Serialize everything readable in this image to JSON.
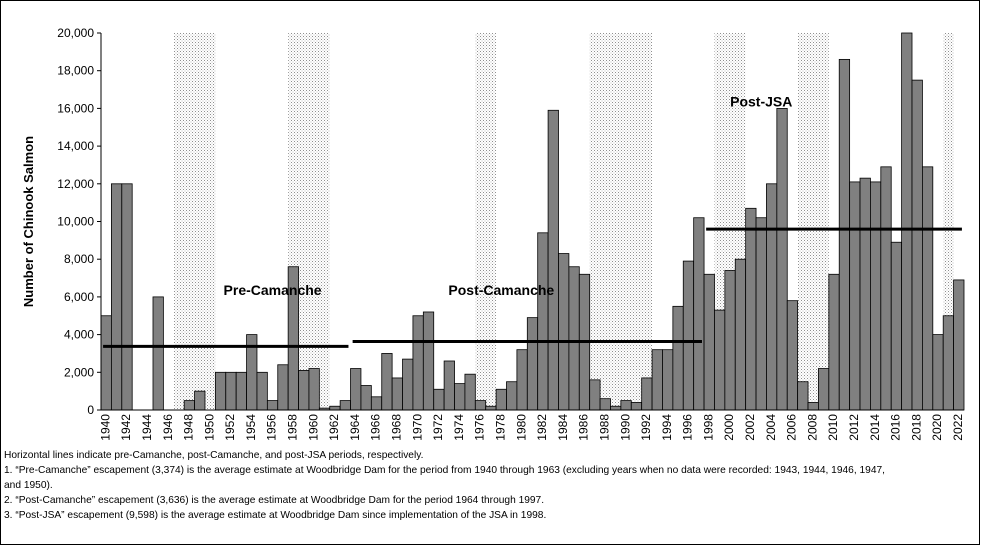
{
  "chart_data": {
    "type": "bar",
    "title": "",
    "xlabel": "",
    "ylabel": "Number of Chinook Salmon",
    "ylim": [
      0,
      20000
    ],
    "yticks": [
      "0",
      "2,000",
      "4,000",
      "6,000",
      "8,000",
      "10,000",
      "12,000",
      "14,000",
      "16,000",
      "18,000",
      "20,000"
    ],
    "ytick_values": [
      0,
      2000,
      4000,
      6000,
      8000,
      10000,
      12000,
      14000,
      16000,
      18000,
      20000
    ],
    "x": [
      1940,
      1941,
      1942,
      1943,
      1944,
      1945,
      1946,
      1947,
      1948,
      1949,
      1950,
      1951,
      1952,
      1953,
      1954,
      1955,
      1956,
      1957,
      1958,
      1959,
      1960,
      1961,
      1962,
      1963,
      1964,
      1965,
      1966,
      1967,
      1968,
      1969,
      1970,
      1971,
      1972,
      1973,
      1974,
      1975,
      1976,
      1977,
      1978,
      1979,
      1980,
      1981,
      1982,
      1983,
      1984,
      1985,
      1986,
      1987,
      1988,
      1989,
      1990,
      1991,
      1992,
      1993,
      1994,
      1995,
      1996,
      1997,
      1998,
      1999,
      2000,
      2001,
      2002,
      2003,
      2004,
      2005,
      2006,
      2007,
      2008,
      2009,
      2010,
      2011,
      2012,
      2013,
      2014,
      2015,
      2016,
      2017,
      2018,
      2019,
      2020,
      2021,
      2022
    ],
    "values": [
      5000,
      12000,
      12000,
      0,
      0,
      6000,
      0,
      0,
      500,
      1000,
      0,
      2000,
      2000,
      2000,
      4000,
      2000,
      500,
      2400,
      7600,
      2100,
      2200,
      100,
      200,
      500,
      2200,
      1300,
      700,
      3000,
      1700,
      2700,
      5000,
      5200,
      1100,
      2600,
      1400,
      1900,
      500,
      200,
      1100,
      1500,
      3200,
      4900,
      9400,
      15900,
      8300,
      7600,
      7200,
      1600,
      600,
      200,
      500,
      400,
      1700,
      3200,
      3200,
      5500,
      7900,
      10200,
      7200,
      5300,
      7400,
      8000,
      10700,
      10200,
      12000,
      16000,
      5800,
      1500,
      400,
      2200,
      7200,
      18600,
      12100,
      12300,
      12100,
      12900,
      8900,
      20000,
      17500,
      12900,
      4000,
      5000,
      6900
    ],
    "x_tick_labels": [
      "1940",
      "1942",
      "1944",
      "1946",
      "1948",
      "1950",
      "1952",
      "1954",
      "1956",
      "1958",
      "1960",
      "1962",
      "1964",
      "1966",
      "1968",
      "1970",
      "1972",
      "1974",
      "1976",
      "1978",
      "1980",
      "1982",
      "1984",
      "1986",
      "1988",
      "1990",
      "1992",
      "1994",
      "1996",
      "1998",
      "2000",
      "2002",
      "2004",
      "2006",
      "2008",
      "2010",
      "2012",
      "2014",
      "2016",
      "2018",
      "2020",
      "2022"
    ],
    "shaded_periods": [
      [
        1947,
        1950
      ],
      [
        1958,
        1961
      ],
      [
        1976,
        1977
      ],
      [
        1987,
        1992
      ],
      [
        1999,
        2001
      ],
      [
        2007,
        2009
      ],
      [
        2021,
        2021
      ]
    ],
    "average_lines": [
      {
        "name": "Pre-Camanche",
        "value": 3374,
        "from": 1940,
        "to": 1963
      },
      {
        "name": "Post-Camanche",
        "value": 3636,
        "from": 1964,
        "to": 1997
      },
      {
        "name": "Post-JSA",
        "value": 9598,
        "from": 1998,
        "to": 2022
      }
    ],
    "annotations": [
      {
        "text": "Pre-Camanche",
        "year": 1956,
        "value": 6100
      },
      {
        "text": "Post-Camanche",
        "year": 1978,
        "value": 6100
      },
      {
        "text": "Post-JSA",
        "year": 2003,
        "value": 16100
      }
    ],
    "colors": {
      "bar_fill": "#808080",
      "bar_stroke": "#000000",
      "line": "#000000",
      "shade_dot": "#9a9a9a"
    }
  },
  "notes": [
    "Horizontal lines indicate pre-Camanche, post-Camanche, and post-JSA periods, respectively.",
    "1. “Pre-Camanche” escapement (3,374) is the average estimate at Woodbridge Dam for the period from 1940 through 1963 (excluding years when no data were recorded: 1943, 1944, 1946, 1947,",
    "and 1950).",
    "2. “Post-Camanche” escapement (3,636) is the average estimate at Woodbridge Dam for the period 1964 through 1997.",
    "3. “Post-JSA” escapement (9,598) is the average estimate at Woodbridge Dam since implementation of the JSA in 1998."
  ]
}
